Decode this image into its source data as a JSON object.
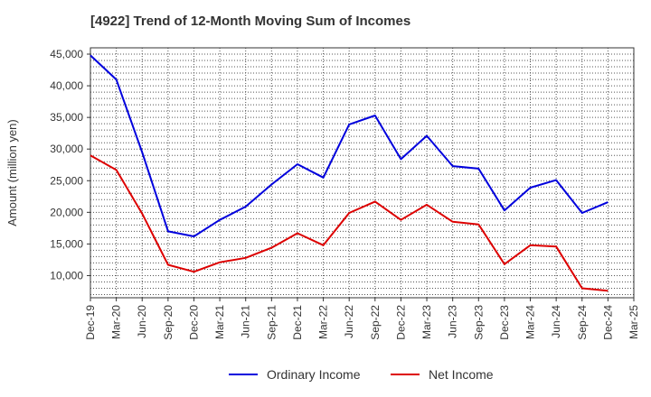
{
  "chart_data": {
    "type": "line",
    "title": "[4922]  Trend of 12-Month Moving Sum of Incomes",
    "xlabel": "",
    "ylabel": "Amount (million yen)",
    "categories": [
      "Dec-19",
      "Mar-20",
      "Jun-20",
      "Sep-20",
      "Dec-20",
      "Mar-21",
      "Jun-21",
      "Sep-21",
      "Dec-21",
      "Mar-22",
      "Jun-22",
      "Sep-22",
      "Dec-22",
      "Mar-23",
      "Jun-23",
      "Sep-23",
      "Dec-23",
      "Mar-24",
      "Jun-24",
      "Sep-24",
      "Dec-24",
      "Mar-25"
    ],
    "y_ticks": [
      10000,
      15000,
      20000,
      25000,
      30000,
      35000,
      40000,
      45000
    ],
    "y_tick_labels": [
      "10,000",
      "15,000",
      "20,000",
      "25,000",
      "30,000",
      "35,000",
      "40,000",
      "45,000"
    ],
    "ylim": [
      6500,
      46000
    ],
    "grid": true,
    "legend_position": "bottom-center",
    "series": [
      {
        "name": "Ordinary Income",
        "color": "#0000dd",
        "values": [
          44800,
          41000,
          29500,
          17000,
          16200,
          18800,
          20900,
          24400,
          27600,
          25500,
          33900,
          35300,
          28400,
          32100,
          27300,
          26900,
          20300,
          23900,
          25100,
          19900,
          21600,
          null
        ]
      },
      {
        "name": "Net Income",
        "color": "#dd0000",
        "values": [
          29000,
          26700,
          19800,
          11700,
          10600,
          12100,
          12800,
          14400,
          16700,
          14800,
          19900,
          21700,
          18800,
          21200,
          18500,
          18100,
          11800,
          14800,
          14600,
          8000,
          7600,
          null
        ]
      }
    ]
  }
}
